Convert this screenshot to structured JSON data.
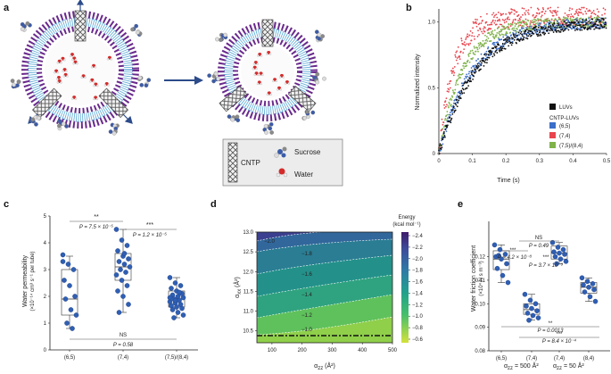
{
  "panel_labels": {
    "a": "a",
    "b": "b",
    "c": "c",
    "d": "d",
    "e": "e"
  },
  "panel_a": {
    "legend": {
      "cntp": "CNTP",
      "sucrose": "Sucrose",
      "water": "Water"
    }
  },
  "chart_data": [
    {
      "id": "b",
      "type": "scatter",
      "xlabel": "Time (s)",
      "ylabel": "Normalized intensity",
      "xlim": [
        0,
        0.5
      ],
      "ylim": [
        0,
        1.1
      ],
      "xticks": [
        "0",
        "0.1",
        "0.2",
        "0.3",
        "0.4",
        "0.5"
      ],
      "yticks": [
        "0",
        "0.5",
        "1.0"
      ],
      "legend_title": "CNTP-LUVs",
      "series": [
        {
          "name": "LUVs",
          "color": "#111111",
          "tau": 0.11
        },
        {
          "name": "(6,5)",
          "color": "#3b6fc9",
          "tau": 0.1
        },
        {
          "name": "(7,4)",
          "color": "#e8454e",
          "tau": 0.045
        },
        {
          "name": "(7,5)/(8,4)",
          "color": "#7fb24a",
          "tau": 0.07
        }
      ]
    },
    {
      "id": "c",
      "type": "box",
      "ylabel_main": "Water permeability",
      "ylabel_unit": "(×10⁻¹⁴ cm³ s⁻¹ per tube)",
      "ylim": [
        0,
        5
      ],
      "yticks": [
        "0",
        "1",
        "2",
        "3",
        "4",
        "5"
      ],
      "categories": [
        "(6,5)",
        "(7,4)",
        "(7,5)/(8,4)"
      ],
      "boxes": [
        {
          "q1": 1.3,
          "median": 1.9,
          "q3": 3.0,
          "min": 0.8,
          "max": 3.5,
          "points": [
            3.55,
            3.2,
            3.0,
            2.6,
            2.4,
            2.0,
            1.9,
            1.5,
            1.3,
            1.0,
            0.8,
            3.3
          ]
        },
        {
          "q1": 2.6,
          "median": 3.1,
          "q3": 3.6,
          "min": 1.4,
          "max": 4.5,
          "points": [
            4.5,
            4.1,
            3.9,
            3.7,
            3.5,
            3.4,
            3.3,
            3.2,
            3.1,
            3.0,
            2.9,
            2.8,
            2.6,
            2.4,
            2.2,
            2.0,
            1.7,
            1.4,
            3.6
          ]
        },
        {
          "q1": 1.6,
          "median": 1.9,
          "q3": 2.2,
          "min": 1.2,
          "max": 2.7,
          "points": [
            2.7,
            2.5,
            2.4,
            2.3,
            2.2,
            2.1,
            2.05,
            2.0,
            1.95,
            1.9,
            1.85,
            1.8,
            1.75,
            1.7,
            1.65,
            1.6,
            1.55,
            1.5,
            1.4,
            1.3,
            1.2,
            2.15,
            1.95,
            1.85
          ]
        }
      ],
      "annotations": [
        {
          "stars": "**",
          "p": "P = 7.5 × 10⁻⁵"
        },
        {
          "stars": "***",
          "p": "P = 1.2 × 10⁻⁵"
        },
        {
          "stars": "NS",
          "p": "P = 0.58"
        }
      ]
    },
    {
      "id": "d",
      "type": "heatmap",
      "xlabel": "α",
      "xlabel_sub": "zz",
      "xlabel_unit": " (Å²)",
      "ylabel": "α",
      "ylabel_sub": "xx",
      "ylabel_unit": " (Å²)",
      "xlim": [
        50,
        500
      ],
      "ylim": [
        10.2,
        13.0
      ],
      "xticks": [
        "100",
        "200",
        "300",
        "400",
        "500"
      ],
      "yticks": [
        "10.5",
        "11.0",
        "11.5",
        "12.0",
        "12.5",
        "13.0"
      ],
      "colorbar_title": "Energy",
      "colorbar_unit": "(kcal mol⁻¹)",
      "colorbar_ticks": [
        "−2.4",
        "−2.2",
        "−2.0",
        "−1.8",
        "−1.6",
        "−1.4",
        "−1.2",
        "−1.0",
        "−0.8",
        "−0.6"
      ],
      "contour_labels": [
        "−2.0",
        "−1.8",
        "−1.6",
        "−1.4",
        "−1.2",
        "−1.0"
      ],
      "dashed_line_y": 10.3
    },
    {
      "id": "e",
      "type": "box",
      "ylabel_main": "Water friction coefficient",
      "ylabel_unit": "(×10⁴ N s m⁻³)",
      "ylim": [
        0.08,
        0.135
      ],
      "yticks": [
        "0.08",
        "0.09",
        "0.10",
        "0.11",
        "0.12"
      ],
      "categories": [
        "(6,5)",
        "(7,4)",
        "(7,4)",
        "(8,4)"
      ],
      "group_labels": [
        "α",
        "zz",
        " = 500 Å²",
        "α",
        "zz",
        " = 50 Å²"
      ],
      "boxes": [
        {
          "q1": 0.1145,
          "median": 0.119,
          "q3": 0.1225,
          "min": 0.109,
          "max": 0.125,
          "points": [
            0.125,
            0.123,
            0.121,
            0.12,
            0.119,
            0.117,
            0.115,
            0.112,
            0.109,
            0.1205
          ]
        },
        {
          "q1": 0.0955,
          "median": 0.0975,
          "q3": 0.1,
          "min": 0.093,
          "max": 0.104,
          "points": [
            0.104,
            0.1015,
            0.1,
            0.099,
            0.098,
            0.097,
            0.096,
            0.095,
            0.094,
            0.093
          ]
        },
        {
          "q1": 0.119,
          "median": 0.1215,
          "q3": 0.1245,
          "min": 0.117,
          "max": 0.126,
          "points": [
            0.126,
            0.124,
            0.123,
            0.122,
            0.1215,
            0.121,
            0.12,
            0.119,
            0.118,
            0.117
          ]
        },
        {
          "q1": 0.1045,
          "median": 0.107,
          "q3": 0.109,
          "min": 0.101,
          "max": 0.111,
          "points": [
            0.111,
            0.1095,
            0.1085,
            0.108,
            0.107,
            0.106,
            0.105,
            0.103,
            0.101
          ]
        }
      ],
      "annotations": [
        {
          "stars": "NS",
          "p": "P = 0.49"
        },
        {
          "stars": "***",
          "p": "P = 4.2 × 10⁻⁸"
        },
        {
          "stars": "***",
          "p": "P = 3.7 × 10⁻⁹"
        },
        {
          "stars": "**",
          "p": "P = 0.0013"
        },
        {
          "stars": "***",
          "p": "P = 8.4 × 10⁻⁴"
        }
      ]
    }
  ]
}
